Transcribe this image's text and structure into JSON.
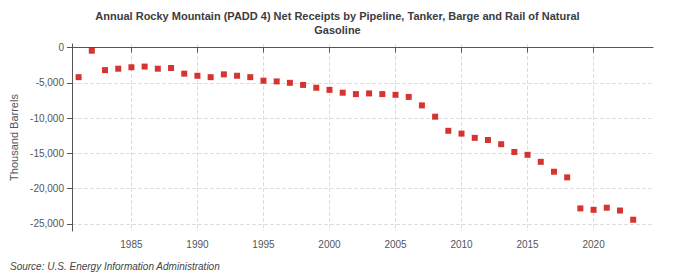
{
  "chart_data": {
    "type": "scatter",
    "title": "Annual Rocky Mountain (PADD 4) Net Receipts by Pipeline, Tanker, Barge and Rail of Natural\nGasoline",
    "ylabel": "Thousand Barrels",
    "annotations": [
      "Source: U.S. Energy Information Administration"
    ],
    "color": "#cc0000",
    "marker": "square",
    "grid": true,
    "xlim": [
      1980.5,
      2024.5
    ],
    "xticks": [
      1985,
      1990,
      1995,
      2000,
      2005,
      2010,
      2015,
      2020
    ],
    "ylim": [
      -26000,
      500
    ],
    "yticks": [
      0,
      {
        "value": -5000,
        "label": "-5,000"
      },
      {
        "value": -10000,
        "label": "-10,000"
      },
      {
        "value": -15000,
        "label": "-15,000"
      },
      {
        "value": -20000,
        "label": "-20,000"
      },
      {
        "value": -25000,
        "label": "-25,000"
      }
    ],
    "x": [
      1981,
      1982,
      1983,
      1984,
      1985,
      1986,
      1987,
      1988,
      1989,
      1990,
      1991,
      1992,
      1993,
      1994,
      1995,
      1996,
      1997,
      1998,
      1999,
      2000,
      2001,
      2002,
      2003,
      2004,
      2005,
      2006,
      2007,
      2008,
      2009,
      2010,
      2011,
      2012,
      2013,
      2014,
      2015,
      2016,
      2017,
      2018,
      2019,
      2020,
      2021,
      2022,
      2023
    ],
    "values": [
      -4200,
      -450,
      -3200,
      -3000,
      -2800,
      -2700,
      -3000,
      -2900,
      -3700,
      -4000,
      -4200,
      -3800,
      -4000,
      -4200,
      -4700,
      -4800,
      -5000,
      -5300,
      -5700,
      -6000,
      -6400,
      -6600,
      -6500,
      -6600,
      -6700,
      -7000,
      -8200,
      -9800,
      -11800,
      -12200,
      -12800,
      -13100,
      -13700,
      -14800,
      -15200,
      -16200,
      -17600,
      -18400,
      -22800,
      -23000,
      -22700,
      -23100,
      -24400
    ]
  }
}
